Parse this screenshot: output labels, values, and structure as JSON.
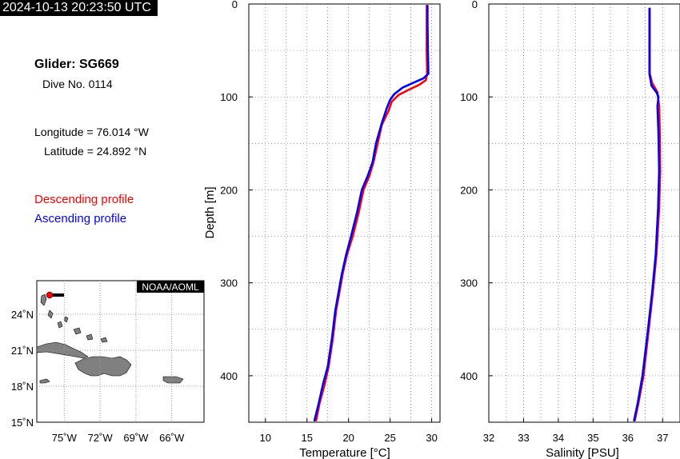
{
  "header": {
    "timestamp": "2024-10-13 20:23:50 UTC",
    "glider_title": "Glider: SG669",
    "dive_label": "Dive No. 0114",
    "longitude_label": "Longitude = 76.014 °W",
    "latitude_label": "Latitude = 24.892 °N"
  },
  "legend": {
    "descending": "Descending profile",
    "ascending": "Ascending profile",
    "descending_color": "#ff0000",
    "ascending_color": "#0000ff"
  },
  "map": {
    "credit": "NOAA/AOML",
    "lat_ticks": [
      "24˚N",
      "21˚N",
      "18˚N",
      "15˚N"
    ],
    "lon_ticks": [
      "75˚W",
      "72˚W",
      "69˚W",
      "66˚W"
    ],
    "glider_position": {
      "lon": -76.014,
      "lat": 24.892
    }
  },
  "chart_data": [
    {
      "type": "line",
      "xlabel": "Temperature [°C]",
      "ylabel": "Depth [m]",
      "xlim": [
        8,
        31
      ],
      "ylim": [
        0,
        450
      ],
      "y_inverted": true,
      "x_ticks": [
        "10",
        "15",
        "20",
        "25",
        "30"
      ],
      "y_ticks": [
        "0",
        "100",
        "200",
        "300",
        "400"
      ],
      "grid": true,
      "series": [
        {
          "name": "Descending profile",
          "color": "#ff0000",
          "points": [
            [
              29.4,
              2
            ],
            [
              29.4,
              20
            ],
            [
              29.4,
              50
            ],
            [
              29.45,
              75
            ],
            [
              29.3,
              82
            ],
            [
              28.5,
              87
            ],
            [
              27.3,
              92
            ],
            [
              26.0,
              98
            ],
            [
              25.2,
              105
            ],
            [
              24.8,
              115
            ],
            [
              24.0,
              130
            ],
            [
              23.5,
              150
            ],
            [
              23.0,
              170
            ],
            [
              22.5,
              185
            ],
            [
              21.8,
              200
            ],
            [
              21.2,
              225
            ],
            [
              20.5,
              250
            ],
            [
              19.8,
              270
            ],
            [
              19.3,
              290
            ],
            [
              18.9,
              310
            ],
            [
              18.5,
              330
            ],
            [
              18.1,
              360
            ],
            [
              17.6,
              390
            ],
            [
              17.1,
              410
            ],
            [
              16.5,
              430
            ],
            [
              16.1,
              448
            ]
          ]
        },
        {
          "name": "Ascending profile",
          "color": "#0000ff",
          "points": [
            [
              29.5,
              2
            ],
            [
              29.5,
              20
            ],
            [
              29.55,
              50
            ],
            [
              29.6,
              75
            ],
            [
              29.0,
              80
            ],
            [
              28.0,
              84
            ],
            [
              26.5,
              90
            ],
            [
              25.5,
              97
            ],
            [
              25.0,
              103
            ],
            [
              24.6,
              112
            ],
            [
              24.0,
              128
            ],
            [
              23.3,
              150
            ],
            [
              22.9,
              170
            ],
            [
              22.3,
              185
            ],
            [
              21.6,
              200
            ],
            [
              21.0,
              225
            ],
            [
              20.3,
              250
            ],
            [
              19.7,
              270
            ],
            [
              19.2,
              290
            ],
            [
              18.8,
              310
            ],
            [
              18.4,
              330
            ],
            [
              18.0,
              360
            ],
            [
              17.5,
              390
            ],
            [
              16.9,
              410
            ],
            [
              16.4,
              430
            ],
            [
              15.9,
              448
            ]
          ]
        }
      ]
    },
    {
      "type": "line",
      "xlabel": "Salinity [PSU]",
      "ylabel": "",
      "xlim": [
        32,
        37.5
      ],
      "ylim": [
        0,
        450
      ],
      "y_inverted": true,
      "x_ticks": [
        "32",
        "33",
        "34",
        "35",
        "36",
        "37"
      ],
      "y_ticks": [
        "0",
        "100",
        "200",
        "300",
        "400"
      ],
      "grid": true,
      "series": [
        {
          "name": "Descending profile",
          "color": "#ff0000",
          "points": [
            [
              36.63,
              5
            ],
            [
              36.63,
              40
            ],
            [
              36.63,
              75
            ],
            [
              36.7,
              85
            ],
            [
              36.85,
              95
            ],
            [
              36.9,
              110
            ],
            [
              36.92,
              140
            ],
            [
              36.93,
              180
            ],
            [
              36.9,
              220
            ],
            [
              36.82,
              270
            ],
            [
              36.72,
              310
            ],
            [
              36.6,
              350
            ],
            [
              36.45,
              400
            ],
            [
              36.3,
              430
            ],
            [
              36.2,
              448
            ]
          ]
        },
        {
          "name": "Ascending profile",
          "color": "#0000ff",
          "points": [
            [
              36.62,
              5
            ],
            [
              36.62,
              40
            ],
            [
              36.62,
              75
            ],
            [
              36.68,
              88
            ],
            [
              36.82,
              95
            ],
            [
              36.88,
              100
            ],
            [
              36.85,
              110
            ],
            [
              36.88,
              140
            ],
            [
              36.9,
              180
            ],
            [
              36.87,
              220
            ],
            [
              36.8,
              270
            ],
            [
              36.7,
              310
            ],
            [
              36.58,
              350
            ],
            [
              36.42,
              400
            ],
            [
              36.28,
              430
            ],
            [
              36.18,
              448
            ]
          ]
        }
      ]
    }
  ]
}
